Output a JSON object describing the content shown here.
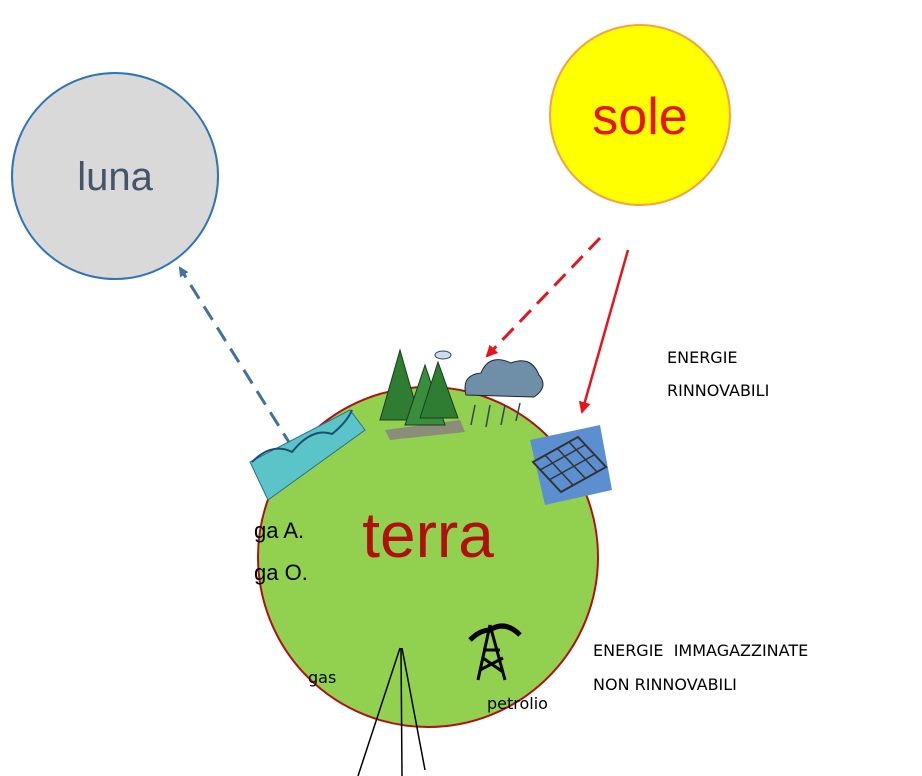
{
  "nodes": {
    "luna": "luna",
    "sole": "sole",
    "terra": "terra"
  },
  "labels": {
    "renewable": [
      "ENERGIE",
      "RINNOVABILI"
    ],
    "stored": [
      "ENERGIE  IMMAGAZZINATE",
      "NON RINNOVABILI"
    ],
    "gas": "gas",
    "petrolio": "petrolio"
  },
  "side_text": [
    "ga A.",
    "ga O."
  ]
}
